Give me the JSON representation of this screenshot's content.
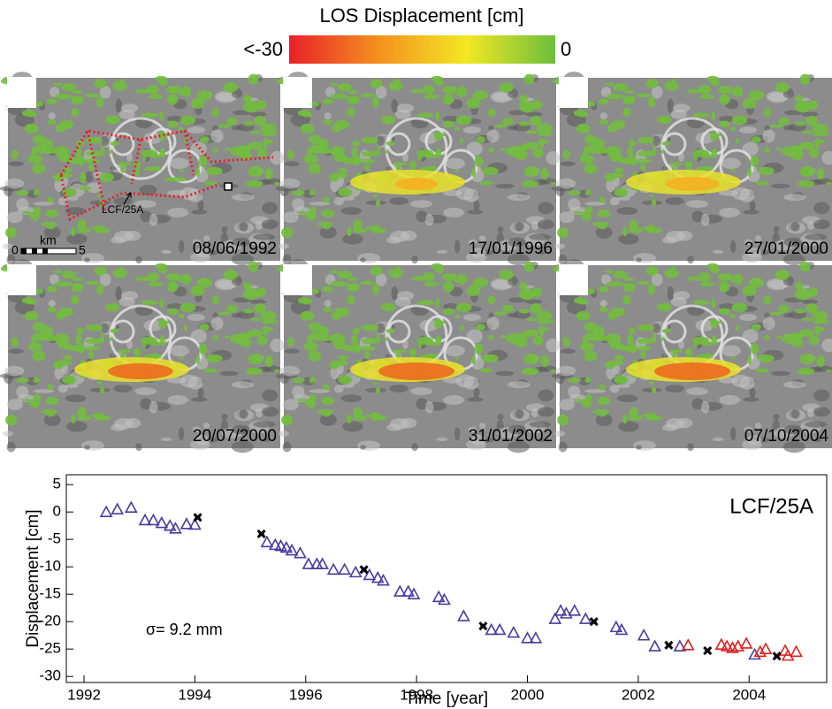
{
  "colorbar": {
    "title": "LOS Displacement [cm]",
    "min_label": "<-30",
    "max_label": "0",
    "colors": [
      "#e8202a",
      "#f5901e",
      "#f2e824",
      "#6cbf3c"
    ]
  },
  "maps": {
    "panels": [
      {
        "date": "08/06/1992"
      },
      {
        "date": "17/01/1996"
      },
      {
        "date": "27/01/2000"
      },
      {
        "date": "20/07/2000"
      },
      {
        "date": "31/01/2002"
      },
      {
        "date": "07/10/2004"
      }
    ],
    "annotation": "LCF/25A",
    "scale": {
      "start": "0",
      "unit": "km",
      "end": "5"
    }
  },
  "chart_data": {
    "type": "scatter",
    "annotation": "LCF/25A",
    "sigma_label": "σ= 9.2 mm",
    "x_label": "Time [year]",
    "y_label": "Displacement [cm]",
    "xlim": [
      1991.68,
      2005.4
    ],
    "xticks": [
      1992,
      1994,
      1996,
      1998,
      2000,
      2002,
      2004
    ],
    "ylim": [
      -31.1,
      6.8
    ],
    "yticks": [
      5,
      0,
      -5,
      -10,
      -15,
      -20,
      -25,
      -30
    ],
    "series": [
      {
        "color": "#4b3aa0",
        "marker": "triangle",
        "x": [
          1992.4,
          1992.6,
          1992.85,
          1993.1,
          1993.25,
          1993.4,
          1993.55,
          1993.65,
          1993.85,
          1994.0,
          1995.3,
          1995.45,
          1995.55,
          1995.65,
          1995.75,
          1995.9,
          1996.05,
          1996.2,
          1996.3,
          1996.5,
          1996.7,
          1996.9,
          1997.15,
          1997.3,
          1997.4,
          1997.7,
          1997.85,
          1997.95,
          1998.4,
          1998.5,
          1998.85,
          1999.35,
          1999.5,
          1999.75,
          2000.0,
          2000.15,
          2000.5,
          2000.6,
          2000.7,
          2000.85,
          2001.05,
          2001.6,
          2001.7,
          2002.1,
          2002.3,
          2002.75,
          2004.1
        ],
        "values": [
          0,
          0.5,
          0.8,
          -1.5,
          -1.5,
          -2,
          -2.5,
          -3,
          -2.2,
          -2.3,
          -5.5,
          -6,
          -6.2,
          -6.5,
          -7,
          -7.5,
          -9.5,
          -9.5,
          -9.5,
          -10.5,
          -10.5,
          -11,
          -11.5,
          -12,
          -12.5,
          -14.5,
          -14.5,
          -15,
          -15.5,
          -16,
          -19,
          -21.5,
          -21.5,
          -22,
          -23,
          -23,
          -19.5,
          -18,
          -18.5,
          -18,
          -19.5,
          -21,
          -21.5,
          -22.5,
          -24.5,
          -24.5,
          -26
        ]
      },
      {
        "color": "#e02020",
        "marker": "triangle",
        "x": [
          2002.9,
          2003.5,
          2003.6,
          2003.7,
          2003.8,
          2003.95,
          2004.2,
          2004.3,
          2004.65,
          2004.7,
          2004.85
        ],
        "values": [
          -24.3,
          -24.2,
          -24.5,
          -24.8,
          -24.5,
          -24,
          -25.5,
          -25,
          -25.3,
          -26.2,
          -25.5
        ]
      },
      {
        "color": "#000000",
        "marker": "cross",
        "x": [
          1994.05,
          1995.2,
          1997.05,
          1999.2,
          2001.2,
          2002.55,
          2003.25,
          2004.5
        ],
        "values": [
          -1,
          -4,
          -10.5,
          -20.8,
          -20,
          -24.3,
          -25.3,
          -26.3
        ]
      }
    ]
  }
}
